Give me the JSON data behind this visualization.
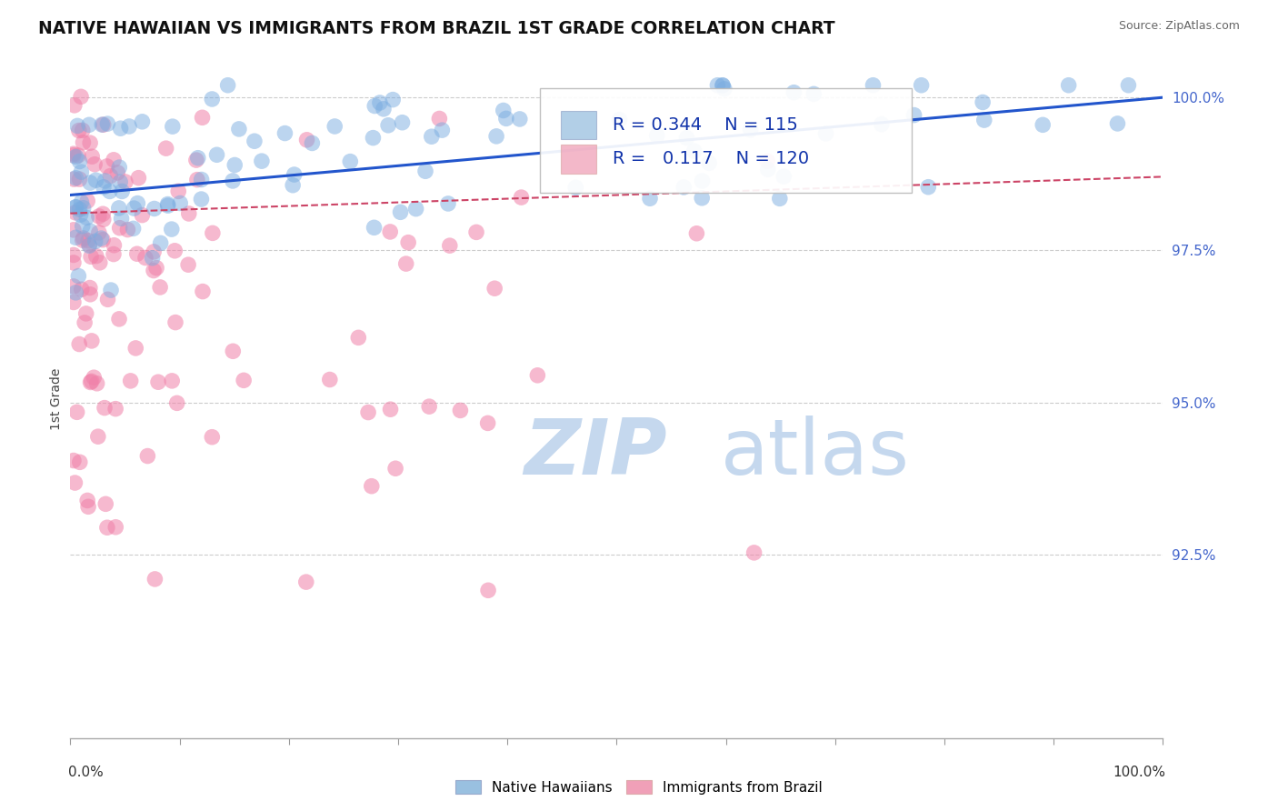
{
  "title": "NATIVE HAWAIIAN VS IMMIGRANTS FROM BRAZIL 1ST GRADE CORRELATION CHART",
  "source_text": "Source: ZipAtlas.com",
  "ylabel": "1st Grade",
  "ylabel_right_labels": [
    "100.0%",
    "97.5%",
    "95.0%",
    "92.5%"
  ],
  "ylabel_right_values": [
    1.0,
    0.975,
    0.95,
    0.925
  ],
  "x_min": 0.0,
  "x_max": 1.0,
  "y_min": 0.895,
  "y_max": 1.006,
  "legend_R_blue": "0.344",
  "legend_N_blue": "115",
  "legend_R_pink": "0.117",
  "legend_N_pink": "120",
  "blue_color": "#7aace0",
  "pink_color": "#f080a8",
  "trend_blue_color": "#2255cc",
  "trend_pink_color": "#cc4466",
  "watermark_color": "#c5d8ee",
  "grid_color": "#cccccc",
  "xtick_color": "#999999"
}
